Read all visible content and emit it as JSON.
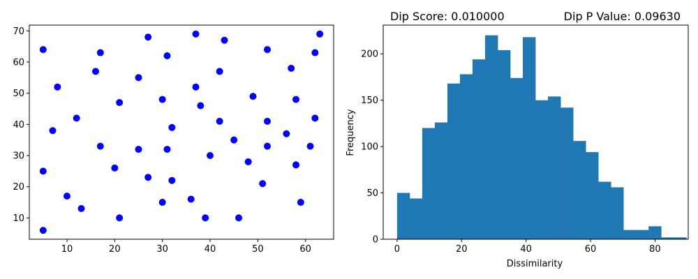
{
  "chart_data": [
    {
      "type": "scatter",
      "color": "#0000ff",
      "xlim": [
        2.1,
        65.9
      ],
      "ylim": [
        3.15,
        71.85
      ],
      "xticks": [
        10,
        20,
        30,
        40,
        50,
        60
      ],
      "yticks": [
        10,
        20,
        30,
        40,
        50,
        60,
        70
      ],
      "xlabel": "",
      "ylabel": "",
      "points": [
        [
          5,
          64
        ],
        [
          5,
          25
        ],
        [
          5,
          6
        ],
        [
          7,
          38
        ],
        [
          8,
          52
        ],
        [
          10,
          17
        ],
        [
          12,
          42
        ],
        [
          13,
          13
        ],
        [
          16,
          57
        ],
        [
          17,
          63
        ],
        [
          17,
          33
        ],
        [
          20,
          26
        ],
        [
          21,
          47
        ],
        [
          21,
          10
        ],
        [
          25,
          55
        ],
        [
          25,
          32
        ],
        [
          27,
          68
        ],
        [
          27,
          23
        ],
        [
          30,
          48
        ],
        [
          30,
          15
        ],
        [
          31,
          62
        ],
        [
          31,
          32
        ],
        [
          32,
          39
        ],
        [
          32,
          22
        ],
        [
          36,
          16
        ],
        [
          37,
          69
        ],
        [
          37,
          52
        ],
        [
          38,
          46
        ],
        [
          39,
          10
        ],
        [
          40,
          30
        ],
        [
          42,
          57
        ],
        [
          42,
          41
        ],
        [
          43,
          67
        ],
        [
          45,
          35
        ],
        [
          46,
          10
        ],
        [
          48,
          28
        ],
        [
          49,
          49
        ],
        [
          51,
          21
        ],
        [
          52,
          64
        ],
        [
          52,
          41
        ],
        [
          52,
          33
        ],
        [
          56,
          37
        ],
        [
          57,
          58
        ],
        [
          58,
          48
        ],
        [
          58,
          27
        ],
        [
          59,
          15
        ],
        [
          61,
          33
        ],
        [
          62,
          63
        ],
        [
          62,
          42
        ],
        [
          63,
          69
        ]
      ]
    },
    {
      "type": "bar",
      "subtype": "histogram",
      "color": "#1f77b4",
      "title_left": "Dip Score: 0.010000",
      "title_right": "Dip P Value: 0.09630",
      "xlabel": "Dissimilarity",
      "ylabel": "Frequency",
      "xlim": [
        -4.3,
        90.3
      ],
      "ylim": [
        0,
        231
      ],
      "xticks": [
        0,
        20,
        40,
        60,
        80
      ],
      "yticks": [
        0,
        50,
        100,
        150,
        200
      ],
      "bin_width": 3.9,
      "bin_start": 0,
      "counts": [
        50,
        44,
        120,
        126,
        168,
        178,
        194,
        220,
        204,
        174,
        218,
        150,
        154,
        142,
        106,
        94,
        62,
        56,
        10,
        10,
        14,
        2,
        2
      ]
    }
  ]
}
